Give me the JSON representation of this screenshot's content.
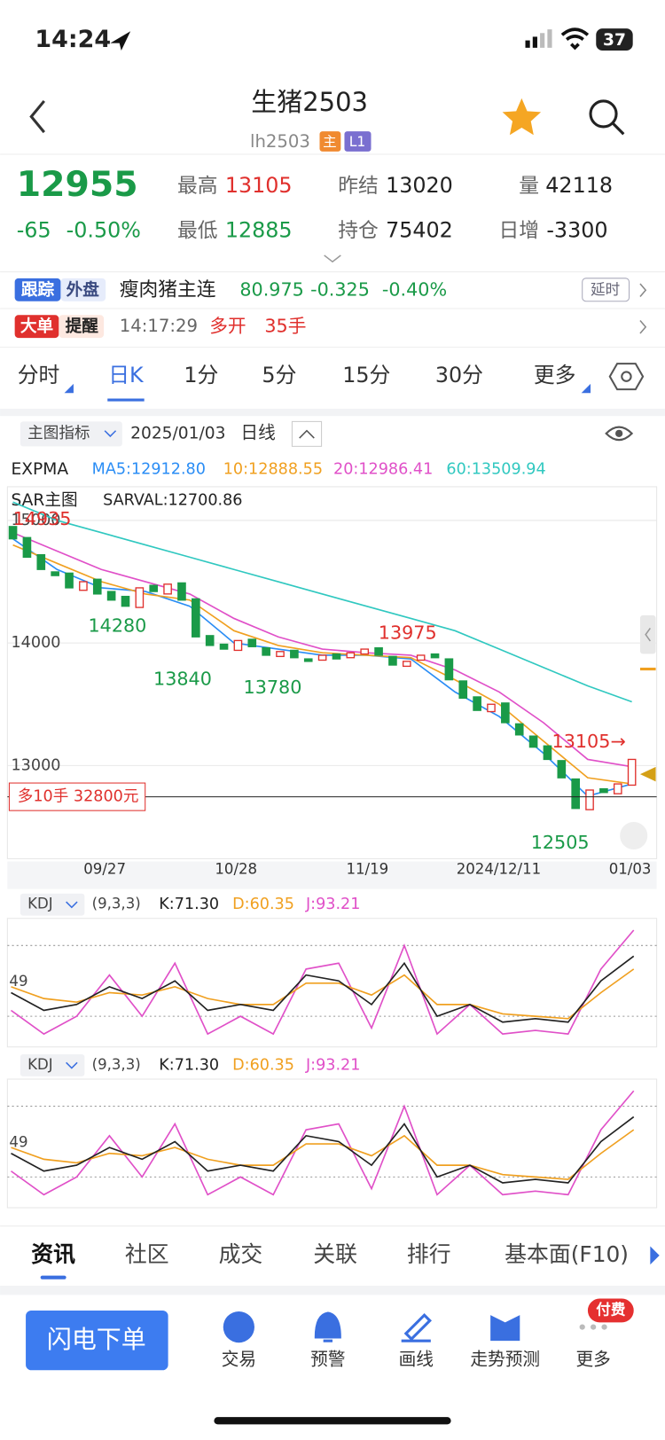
{
  "status": {
    "time": "14:24",
    "battery": "37"
  },
  "header": {
    "title": "生猪2503",
    "code": "lh2503",
    "badge_main": "主",
    "badge_level": "L1"
  },
  "quote": {
    "price": 12955,
    "change": -65,
    "change_pct": "-0.50%",
    "high_label": "最高",
    "high": 13105,
    "low_label": "最低",
    "low": 12885,
    "prev_label": "昨结",
    "prev": 13020,
    "oi_label": "持仓",
    "oi": 75402,
    "vol_label": "量",
    "vol": 42118,
    "daily_label": "日增",
    "daily": -3300
  },
  "ticker": {
    "badge1": "跟踪",
    "badge2": "外盘",
    "name": "瘦肉猪主连",
    "price": 80.975,
    "change": -0.325,
    "pct": "-0.40%",
    "delay": "延时"
  },
  "alert": {
    "badge1": "大单",
    "badge2": "提醒",
    "time": "14:17:29",
    "action": "多开",
    "size": "35手"
  },
  "tabs": [
    "分时",
    "日K",
    "1分",
    "5分",
    "15分",
    "30分",
    "更多"
  ],
  "toolbar": {
    "indicator_menu": "主图指标",
    "date": "2025/01/03",
    "period": "日线"
  },
  "price_chart": {
    "type": "candlestick",
    "indicator": "EXPMA",
    "sar_label": "SAR主图",
    "sar_value": "SARVAL:12700.86",
    "ylim": [
      12240,
      15200
    ],
    "yticks": [
      15000,
      14000,
      13000
    ],
    "grid": true,
    "dates": [
      "09/27",
      "10/28",
      "11/19",
      "2024/12/11",
      "01/03"
    ],
    "up_color": "#e0302d",
    "down_color": "#1a9a48",
    "open": [
      14950,
      14860,
      14720,
      14580,
      14570,
      14430,
      14520,
      14420,
      14380,
      14290,
      14470,
      14400,
      14490,
      14360,
      14060,
      13990,
      13940,
      14030,
      13960,
      13890,
      13940,
      13870,
      13860,
      13910,
      13880,
      13910,
      13960,
      13890,
      13810,
      13860,
      13910,
      13870,
      13690,
      13560,
      13440,
      13510,
      13340,
      13240,
      13160,
      13040,
      12890,
      12640,
      12810,
      12770,
      12840
    ],
    "close": [
      14850,
      14700,
      14600,
      14550,
      14450,
      14500,
      14400,
      14350,
      14300,
      14450,
      14420,
      14480,
      14350,
      14050,
      13980,
      13950,
      14020,
      13970,
      13900,
      13930,
      13880,
      13850,
      13900,
      13870,
      13920,
      13950,
      13900,
      13820,
      13850,
      13900,
      13880,
      13700,
      13550,
      13450,
      13500,
      13350,
      13250,
      13150,
      13050,
      12900,
      12650,
      12800,
      12780,
      12850,
      13050
    ],
    "lines": [
      {
        "label": "MA5:12912.80",
        "color": "#2a8df5",
        "values": [
          14850,
          14600,
          14450,
          14420,
          14300,
          14000,
          13950,
          13900,
          13900,
          13870,
          13600,
          13400,
          13100,
          12750,
          12850
        ]
      },
      {
        "label": "10:12888.55",
        "color": "#f0a020",
        "values": [
          14800,
          14650,
          14500,
          14400,
          14350,
          14100,
          13980,
          13920,
          13900,
          13880,
          13700,
          13500,
          13200,
          12900,
          12850
        ]
      },
      {
        "label": "20:12986.41",
        "color": "#e050c8",
        "values": [
          14900,
          14750,
          14600,
          14500,
          14400,
          14200,
          14050,
          13950,
          13920,
          13900,
          13780,
          13600,
          13350,
          13050,
          12990
        ]
      },
      {
        "label": "60:13509.94",
        "color": "#30c8c0",
        "values": [
          15150,
          15000,
          14900,
          14800,
          14700,
          14600,
          14500,
          14400,
          14300,
          14200,
          14100,
          13950,
          13800,
          13650,
          13520
        ]
      }
    ],
    "annotations": [
      "14935",
      "14280",
      "13840",
      "13780",
      "13975",
      "13105→",
      "12505"
    ],
    "position": {
      "label": "多10手 32800元",
      "price": 12745
    }
  },
  "kdj_panels": [
    {
      "name": "KDJ",
      "params": "(9,3,3)",
      "ylim": [
        -6,
        103
      ],
      "yticks": [
        49
      ],
      "guides": [
        80,
        20
      ],
      "k": {
        "label": "K:71.30",
        "color": "#222222",
        "values": [
          40,
          25,
          30,
          45,
          35,
          50,
          25,
          30,
          25,
          55,
          50,
          30,
          65,
          20,
          30,
          15,
          18,
          15,
          50,
          71
        ]
      },
      "d": {
        "label": "D:60.35",
        "color": "#f0a020",
        "values": [
          45,
          35,
          32,
          40,
          38,
          45,
          35,
          30,
          30,
          48,
          48,
          38,
          55,
          30,
          30,
          22,
          20,
          18,
          40,
          60
        ]
      },
      "j": {
        "label": "J:93.21",
        "color": "#e050c8",
        "values": [
          25,
          5,
          20,
          55,
          20,
          65,
          5,
          20,
          5,
          60,
          65,
          10,
          80,
          5,
          30,
          5,
          8,
          5,
          60,
          93
        ]
      }
    },
    {
      "name": "KDJ",
      "params": "(9,3,3)",
      "ylim": [
        -6,
        103
      ],
      "yticks": [
        49
      ],
      "guides": [
        80,
        20
      ],
      "k": {
        "label": "K:71.30",
        "color": "#222222",
        "values": [
          40,
          25,
          30,
          45,
          35,
          50,
          25,
          30,
          25,
          55,
          50,
          30,
          65,
          20,
          30,
          15,
          18,
          15,
          50,
          71
        ]
      },
      "d": {
        "label": "D:60.35",
        "color": "#f0a020",
        "values": [
          45,
          35,
          32,
          40,
          38,
          45,
          35,
          30,
          30,
          48,
          48,
          38,
          55,
          30,
          30,
          22,
          20,
          18,
          40,
          60
        ]
      },
      "j": {
        "label": "J:93.21",
        "color": "#e050c8",
        "values": [
          25,
          5,
          20,
          55,
          20,
          65,
          5,
          20,
          5,
          60,
          65,
          10,
          80,
          5,
          30,
          5,
          8,
          5,
          60,
          93
        ]
      }
    }
  ],
  "bottom_tabs": [
    "资讯",
    "社区",
    "成交",
    "关联",
    "排行",
    "基本面(F10)"
  ],
  "nav": {
    "order_button": "闪电下单",
    "items": [
      "交易",
      "预警",
      "画线",
      "走势预测",
      "更多"
    ],
    "badge": "付费"
  }
}
